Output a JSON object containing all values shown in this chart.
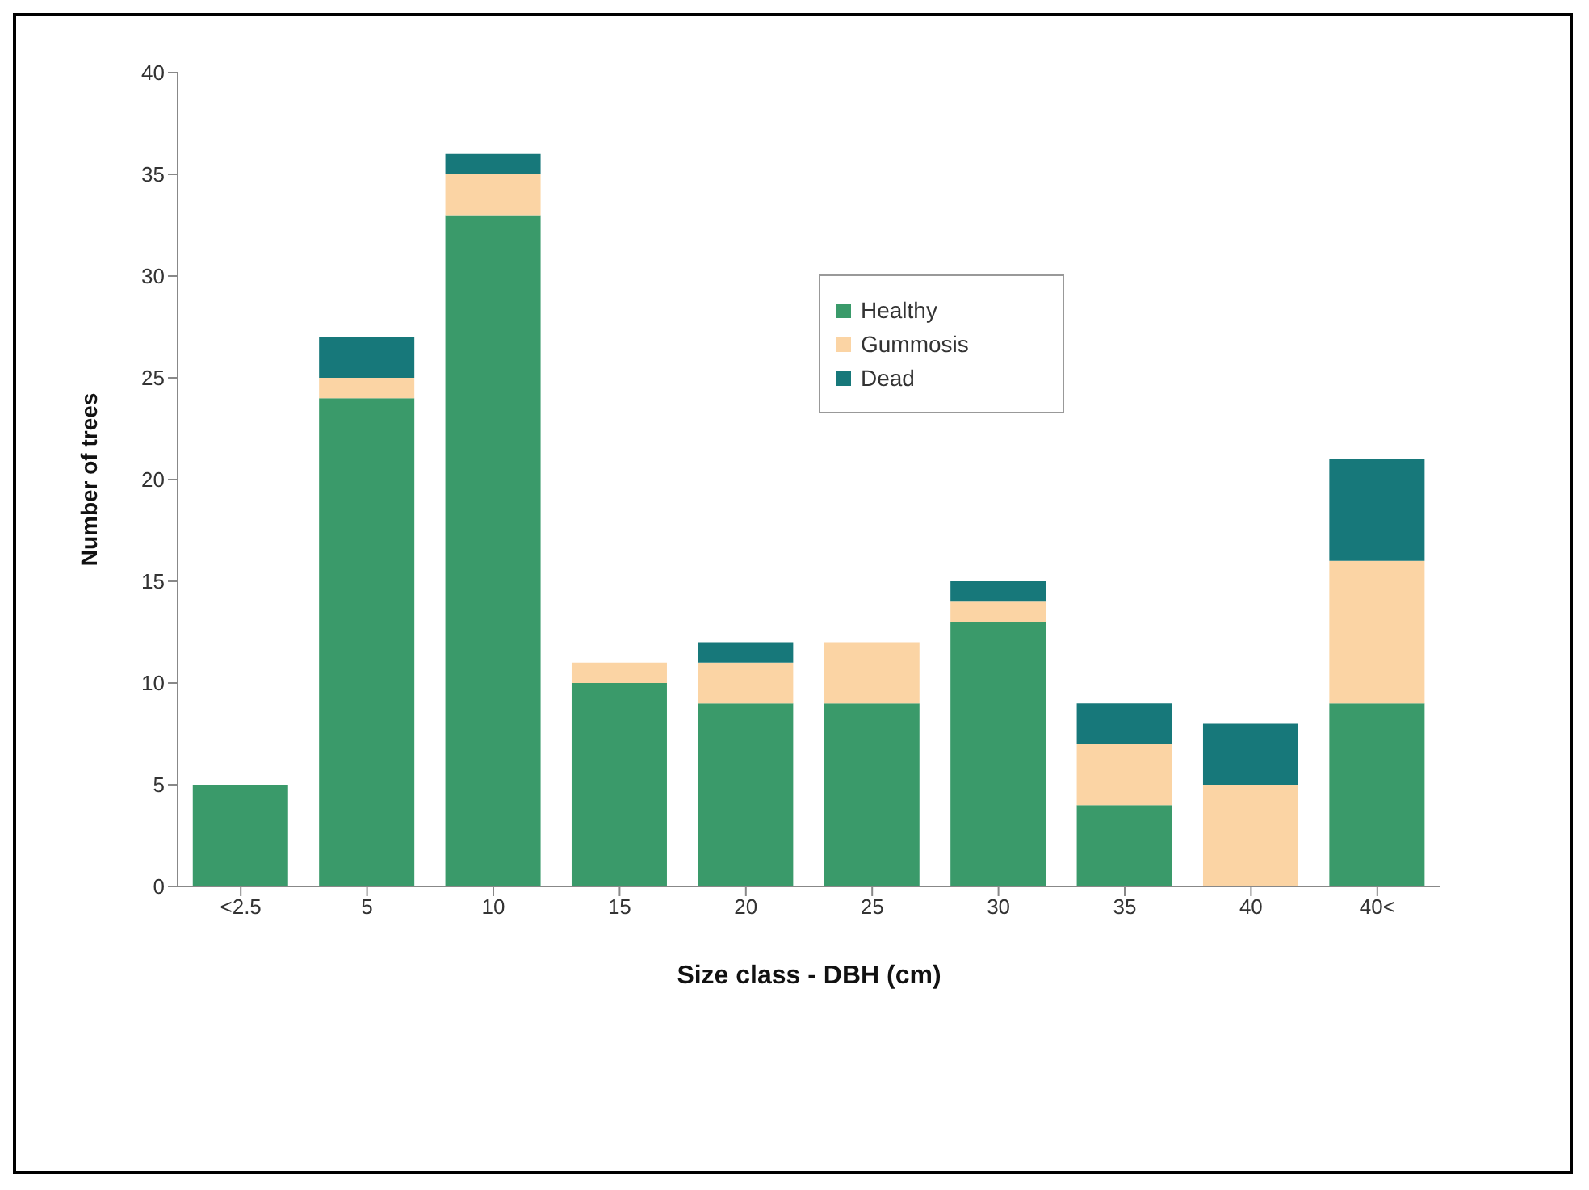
{
  "chart_data": {
    "type": "bar",
    "stacked": true,
    "xlabel": "Size class - DBH (cm)",
    "ylabel": "Number of trees",
    "categories": [
      "<2.5",
      "5",
      "10",
      "15",
      "20",
      "25",
      "30",
      "35",
      "40",
      "40<"
    ],
    "series": [
      {
        "name": "Healthy",
        "color": "#3a9a6a",
        "values": [
          5,
          24,
          33,
          10,
          9,
          9,
          13,
          4,
          0,
          9
        ]
      },
      {
        "name": "Gummosis",
        "color": "#fbd4a4",
        "values": [
          0,
          1,
          2,
          1,
          2,
          3,
          1,
          3,
          5,
          7
        ]
      },
      {
        "name": "Dead",
        "color": "#17787a",
        "values": [
          0,
          2,
          1,
          0,
          1,
          0,
          1,
          2,
          3,
          5
        ]
      }
    ],
    "ylim": [
      0,
      40
    ],
    "yticks": [
      0,
      5,
      10,
      15,
      20,
      25,
      30,
      35,
      40
    ],
    "grid": false,
    "legend": "top"
  }
}
